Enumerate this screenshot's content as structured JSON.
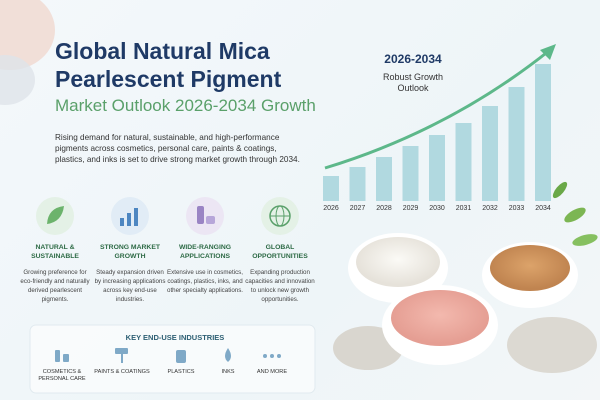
{
  "header": {
    "title_line1": "Global Natural Mica",
    "title_line2": "Pearlescent Pigment",
    "subtitle": "Market Outlook 2026-2034 Growth"
  },
  "intro": "Rising demand for natural, sustainable, and high-performance pigments across cosmetics, personal care, paints & coatings, plastics, and inks is set to drive strong market growth through 2034.",
  "features": [
    {
      "title": "NATURAL & SUSTAINABLE",
      "text": "Growing preference for eco-friendly and naturally derived pearlescent pigments."
    },
    {
      "title": "STRONG MARKET GROWTH",
      "text": "Steady expansion driven by increasing applications across key end-use industries."
    },
    {
      "title": "WIDE-RANGING APPLICATIONS",
      "text": "Extensive use in cosmetics, coatings, plastics, inks, and other specialty applications."
    },
    {
      "title": "GLOBAL OPPORTUNITIES",
      "text": "Expanding production capacities and innovation to unlock new growth opportunities."
    }
  ],
  "industries": {
    "title": "KEY END-USE INDUSTRIES",
    "items": [
      "COSMETICS & PERSONAL CARE",
      "PAINTS & COATINGS",
      "PLASTICS",
      "INKS",
      "AND MORE"
    ]
  },
  "chart_data": {
    "type": "bar",
    "title": "2026-2034",
    "subtitle": "Robust Growth Outlook",
    "categories": [
      "2026",
      "2027",
      "2028",
      "2029",
      "2030",
      "2031",
      "2032",
      "2033",
      "2034"
    ],
    "values": [
      25,
      34,
      44,
      55,
      66,
      78,
      95,
      114,
      137
    ],
    "color": "#a6d4dc"
  }
}
